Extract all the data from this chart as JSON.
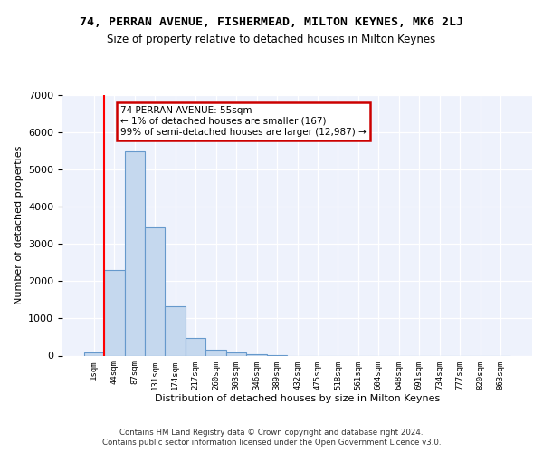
{
  "title": "74, PERRAN AVENUE, FISHERMEAD, MILTON KEYNES, MK6 2LJ",
  "subtitle": "Size of property relative to detached houses in Milton Keynes",
  "xlabel": "Distribution of detached houses by size in Milton Keynes",
  "ylabel": "Number of detached properties",
  "bar_color": "#c5d8ee",
  "bar_edge_color": "#6699cc",
  "background_color": "#eef2fc",
  "grid_color": "#ffffff",
  "annotation_text": "74 PERRAN AVENUE: 55sqm\n← 1% of detached houses are smaller (167)\n99% of semi-detached houses are larger (12,987) →",
  "annotation_box_color": "#ffffff",
  "annotation_box_edge_color": "#cc0000",
  "red_line_x": 0.5,
  "footer_line1": "Contains HM Land Registry data © Crown copyright and database right 2024.",
  "footer_line2": "Contains public sector information licensed under the Open Government Licence v3.0.",
  "categories": [
    "1sqm",
    "44sqm",
    "87sqm",
    "131sqm",
    "174sqm",
    "217sqm",
    "260sqm",
    "303sqm",
    "346sqm",
    "389sqm",
    "432sqm",
    "475sqm",
    "518sqm",
    "561sqm",
    "604sqm",
    "648sqm",
    "691sqm",
    "734sqm",
    "777sqm",
    "820sqm",
    "863sqm"
  ],
  "values": [
    80,
    2300,
    5480,
    3450,
    1320,
    470,
    160,
    90,
    45,
    20,
    0,
    0,
    0,
    0,
    0,
    0,
    0,
    0,
    0,
    0,
    0
  ],
  "ylim": [
    0,
    7000
  ],
  "yticks": [
    0,
    1000,
    2000,
    3000,
    4000,
    5000,
    6000,
    7000
  ]
}
